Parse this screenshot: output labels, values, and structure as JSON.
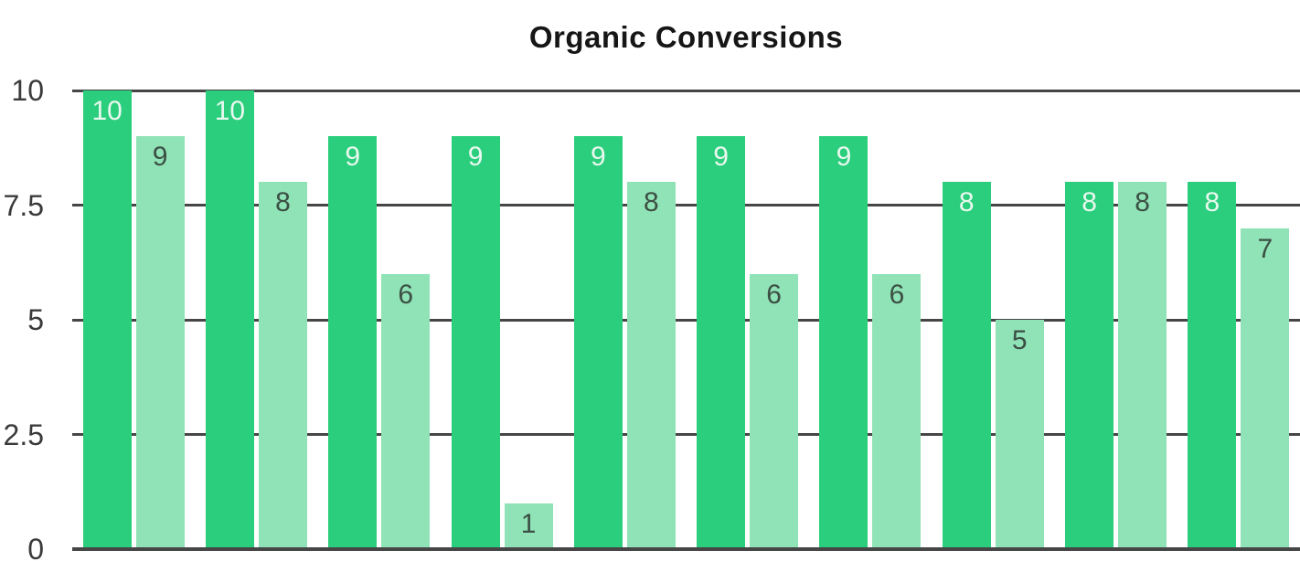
{
  "chart_data": {
    "type": "bar",
    "title": "Organic Conversions",
    "series": [
      {
        "name": "dark-green",
        "color": "#2BCE7C",
        "label_color": "#E9F8EF",
        "values": [
          10,
          10,
          9,
          9,
          9,
          9,
          9,
          8,
          8,
          8
        ]
      },
      {
        "name": "light-green",
        "color": "#8FE3B6",
        "label_color": "#3C4F44",
        "values": [
          9,
          8,
          6,
          1,
          8,
          6,
          6,
          5,
          8,
          7
        ]
      }
    ],
    "ylim": [
      0,
      10
    ],
    "y_ticks": [
      {
        "value": 0,
        "label": "0"
      },
      {
        "value": 2.5,
        "label": "2.5"
      },
      {
        "value": 5,
        "label": "5"
      },
      {
        "value": 7.5,
        "label": "7.5"
      },
      {
        "value": 10,
        "label": "10"
      }
    ],
    "x_axis_labels": "none",
    "legend": "none",
    "grid": true,
    "bar_value_labels": true,
    "gridline_color": "#464646",
    "axis_label_color": "#3A3A3A",
    "title_color": "#161616",
    "background_color": "#FFFFFF"
  }
}
